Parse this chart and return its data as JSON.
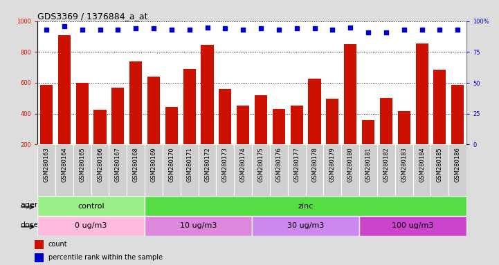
{
  "title": "GDS3369 / 1376884_a_at",
  "samples": [
    "GSM280163",
    "GSM280164",
    "GSM280165",
    "GSM280166",
    "GSM280167",
    "GSM280168",
    "GSM280169",
    "GSM280170",
    "GSM280171",
    "GSM280172",
    "GSM280173",
    "GSM280174",
    "GSM280175",
    "GSM280176",
    "GSM280177",
    "GSM280178",
    "GSM280179",
    "GSM280180",
    "GSM280181",
    "GSM280182",
    "GSM280183",
    "GSM280184",
    "GSM280185",
    "GSM280186"
  ],
  "counts": [
    585,
    910,
    600,
    425,
    570,
    740,
    640,
    445,
    690,
    845,
    560,
    450,
    520,
    430,
    450,
    625,
    495,
    850,
    360,
    500,
    415,
    855,
    685,
    585
  ],
  "percentile_ranks": [
    93,
    96,
    93,
    93,
    93,
    94,
    94,
    93,
    93,
    95,
    94,
    93,
    94,
    93,
    94,
    94,
    93,
    95,
    91,
    91,
    93,
    93,
    93,
    93
  ],
  "bar_color": "#cc1100",
  "dot_color": "#0000cc",
  "ylim_left": [
    200,
    1000
  ],
  "ylim_right": [
    0,
    100
  ],
  "yticks_left": [
    200,
    400,
    600,
    800,
    1000
  ],
  "yticks_right": [
    0,
    25,
    50,
    75,
    100
  ],
  "agent_groups": [
    {
      "label": "control",
      "start": 0,
      "end": 6,
      "color": "#99ee88"
    },
    {
      "label": "zinc",
      "start": 6,
      "end": 24,
      "color": "#55dd44"
    }
  ],
  "dose_groups": [
    {
      "label": "0 ug/m3",
      "start": 0,
      "end": 6,
      "color": "#ffbbdd"
    },
    {
      "label": "10 ug/m3",
      "start": 6,
      "end": 12,
      "color": "#dd88dd"
    },
    {
      "label": "30 ug/m3",
      "start": 12,
      "end": 18,
      "color": "#cc88ee"
    },
    {
      "label": "100 ug/m3",
      "start": 18,
      "end": 24,
      "color": "#cc44cc"
    }
  ],
  "bg_color": "#dddddd",
  "plot_bg": "#ffffff",
  "xtick_bg": "#d0d0d0",
  "title_fontsize": 9,
  "tick_fontsize": 6,
  "label_fontsize": 8,
  "annot_fontsize": 8
}
